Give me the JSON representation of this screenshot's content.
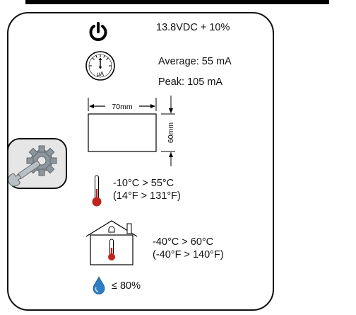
{
  "power": {
    "icon": "power-icon",
    "value": "13.8VDC + 10%"
  },
  "current": {
    "icon": "ammeter-icon",
    "meter_unit": "µA",
    "average": "Average: 55 mA",
    "peak": "Peak: 105 mA"
  },
  "dimensions": {
    "icon": "dimension-box-icon",
    "width": "70mm",
    "height": "60mm"
  },
  "tool": {
    "icon": "wrench-gear-icon"
  },
  "operating_temp": {
    "icon": "thermometer-icon",
    "celsius": "-10°C > 55°C",
    "fahrenheit": "(14°F > 131°F)"
  },
  "storage_temp": {
    "icon": "house-thermometer-icon",
    "celsius": "-40°C > 60°C",
    "fahrenheit": "(-40°F > 140°F)"
  },
  "humidity": {
    "icon": "water-drop-icon",
    "value": "≤ 80%"
  },
  "colors": {
    "thermometer_red": "#c0261f",
    "drop_blue": "#2e7fc1",
    "tool_gray": "#8a9298"
  }
}
